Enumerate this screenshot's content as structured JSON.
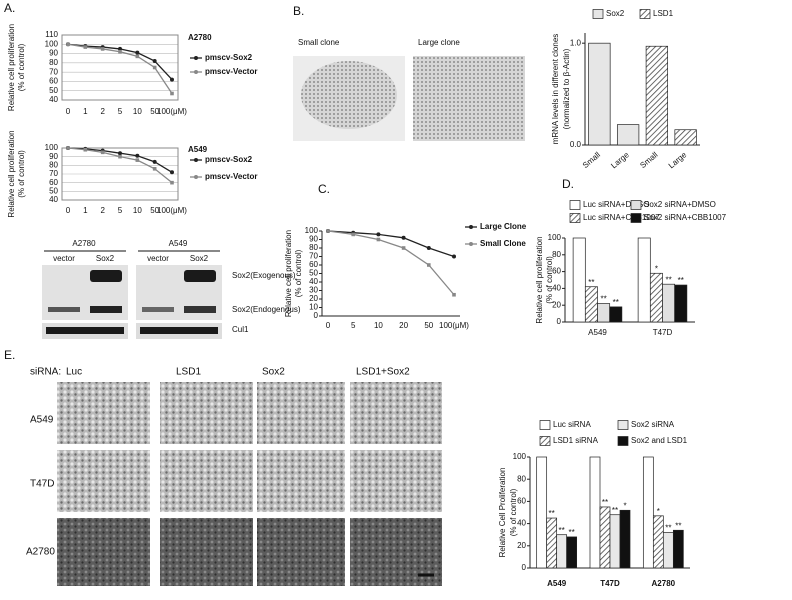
{
  "chart_data": [
    {
      "type": "line",
      "title": "A2780",
      "y_label": [
        "Relative cell proliferation",
        "(% of control)"
      ],
      "categories": [
        "0",
        "1",
        "2",
        "5",
        "10",
        "50",
        "100(μM)"
      ],
      "series": [
        {
          "name": "pmscv-Sox2",
          "color": "#222222",
          "values": [
            100,
            98,
            97,
            95,
            91,
            82,
            62
          ]
        },
        {
          "name": "pmscv-Vector",
          "color": "#888888",
          "values": [
            100,
            97,
            95,
            92,
            87,
            75,
            47
          ]
        }
      ],
      "ylim": [
        40,
        110
      ],
      "yticks": [
        40,
        50,
        60,
        70,
        80,
        90,
        100,
        110
      ],
      "grid": true
    },
    {
      "type": "line",
      "title": "A549",
      "y_label": [
        "Relative cell proliferation",
        "(% of control)"
      ],
      "categories": [
        "0",
        "1",
        "2",
        "5",
        "10",
        "50",
        "100(μM)"
      ],
      "series": [
        {
          "name": "pmscv-Sox2",
          "color": "#222222",
          "values": [
            100,
            99,
            97,
            94,
            91,
            84,
            72
          ]
        },
        {
          "name": "pmscv-Vector",
          "color": "#888888",
          "values": [
            100,
            98,
            95,
            90,
            86,
            76,
            60
          ]
        }
      ],
      "ylim": [
        40,
        100
      ],
      "yticks": [
        40,
        50,
        60,
        70,
        80,
        90,
        100
      ],
      "grid": true
    },
    {
      "type": "bar",
      "y_label": [
        "mRNA levels in different clones",
        "(normalized to β-Actin)"
      ],
      "categories": [
        "Small",
        "Large",
        "Small",
        "Large"
      ],
      "series": [
        {
          "name": "Sox2",
          "color": "#e6e6e6",
          "values": [
            1.0,
            0.2,
            null,
            null
          ]
        },
        {
          "name": "LSD1",
          "color": "#444444",
          "hatch": true,
          "values": [
            null,
            null,
            0.97,
            0.15
          ]
        }
      ],
      "ylim": [
        0,
        1.1
      ],
      "yticks": [
        {
          "value": 0,
          "label": "0.0"
        },
        {
          "value": 1,
          "label": "1.0"
        }
      ]
    },
    {
      "type": "line",
      "y_label": [
        "Relative cell proliferation",
        "(% of control)"
      ],
      "categories": [
        "0",
        "5",
        "10",
        "20",
        "50",
        "100(μM)"
      ],
      "series": [
        {
          "name": "Large Clone",
          "color": "#222222",
          "values": [
            100,
            98,
            96,
            92,
            80,
            70
          ]
        },
        {
          "name": "Small Clone",
          "color": "#888888",
          "values": [
            100,
            96,
            90,
            80,
            60,
            25
          ]
        }
      ],
      "ylim": [
        0,
        100
      ],
      "yticks": [
        0,
        10,
        20,
        30,
        40,
        50,
        60,
        70,
        80,
        90,
        100
      ],
      "grid": false
    },
    {
      "type": "bar",
      "y_label": [
        "Relative cell proliferation",
        "(% of control)"
      ],
      "categories": [
        "A549",
        "T47D"
      ],
      "series": [
        {
          "name": "Luc siRNA+DMSO",
          "color": "#ffffff",
          "values": [
            100,
            100
          ]
        },
        {
          "name": "Luc siRNA+CBB1007",
          "color": "#444444",
          "hatch": true,
          "values": [
            42,
            58
          ],
          "annotations": [
            "**",
            "*"
          ]
        },
        {
          "name": "Sox2 siRNA+DMSO",
          "color": "#e0e0e0",
          "values": [
            22,
            45
          ],
          "annotations": [
            "**",
            "**"
          ]
        },
        {
          "name": "Sox2 siRNA+CBB1007",
          "color": "#111111",
          "values": [
            18,
            44
          ],
          "annotations": [
            "**",
            "**"
          ]
        }
      ],
      "ylim": [
        0,
        100
      ],
      "yticks": [
        0,
        20,
        40,
        60,
        80,
        100
      ]
    },
    {
      "type": "bar",
      "y_label": [
        "Relative Cell Proliferation",
        "(% of control)"
      ],
      "categories": [
        "A549",
        "T47D",
        "A2780"
      ],
      "series": [
        {
          "name": "Luc siRNA",
          "color": "#ffffff",
          "values": [
            100,
            100,
            100
          ]
        },
        {
          "name": "LSD1 siRNA",
          "color": "#444444",
          "hatch": true,
          "values": [
            45,
            55,
            47
          ],
          "annotations": [
            "**",
            "**",
            "*"
          ]
        },
        {
          "name": "Sox2 siRNA",
          "color": "#e8e8e8",
          "values": [
            30,
            48,
            32
          ],
          "annotations": [
            "**",
            "**",
            "**"
          ]
        },
        {
          "name": "Sox2 and LSD1",
          "color": "#111111",
          "values": [
            28,
            52,
            34
          ],
          "annotations": [
            "**",
            "*",
            "**"
          ]
        }
      ],
      "ylim": [
        0,
        100
      ],
      "yticks": [
        0,
        20,
        40,
        60,
        80,
        100
      ]
    }
  ],
  "panels": {
    "a": "A.",
    "b": "B.",
    "c": "C.",
    "d": "D.",
    "e": "E."
  },
  "blot": {
    "lines": [
      "A2780",
      "A549"
    ],
    "lanes": [
      "vector",
      "Sox2",
      "vector",
      "Sox2"
    ],
    "bands": [
      "Sox2(Exogenous)",
      "Sox2(Endogenous)",
      "Cul1"
    ]
  },
  "clones": [
    "Small clone",
    "Large clone"
  ],
  "sirna_grid": {
    "header": "siRNA:",
    "columns": [
      "Luc",
      "LSD1",
      "Sox2",
      "LSD1+Sox2"
    ],
    "rows": [
      "A549",
      "T47D",
      "A2780"
    ]
  }
}
